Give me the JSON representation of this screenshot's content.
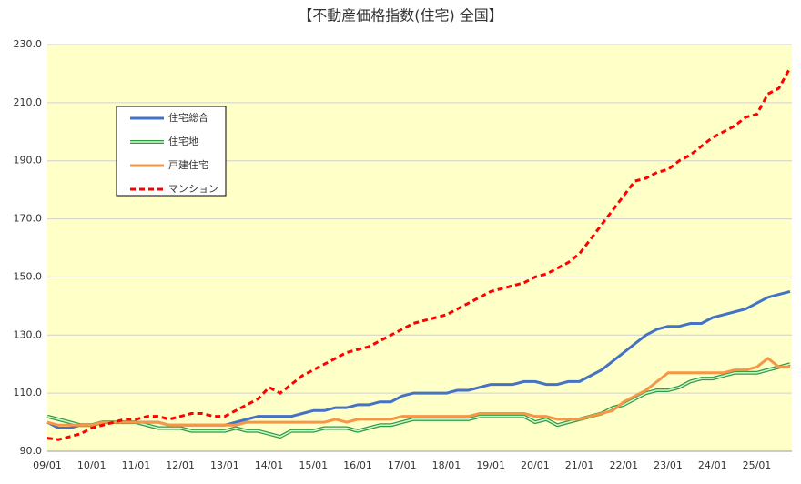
{
  "chart_data": {
    "type": "line",
    "title": "【不動産価格指数(住宅) 全国】",
    "categories": [
      "09/01",
      null,
      null,
      null,
      "10/01",
      null,
      null,
      null,
      "11/01",
      null,
      null,
      null,
      "12/01",
      null,
      null,
      null,
      "13/01",
      null,
      null,
      null,
      "14/01",
      null,
      null,
      null,
      "15/01",
      null,
      null,
      null,
      "16/01",
      null,
      null,
      null,
      "17/01",
      null,
      null,
      null,
      "18/01",
      null,
      null,
      null,
      "19/01",
      null,
      null,
      null,
      "20/01",
      null,
      null,
      null,
      "21/01",
      null,
      null,
      null,
      "22/01",
      null,
      null,
      null,
      "23/01",
      null,
      null,
      null,
      "24/01",
      null,
      null,
      null,
      "25/01",
      null,
      null,
      null
    ],
    "series": [
      {
        "name": "住宅総合",
        "color": "#4472c4",
        "values": [
          100,
          98,
          98,
          99,
          99,
          100,
          100,
          100,
          100,
          100,
          100,
          99,
          99,
          99,
          99,
          99,
          99,
          100,
          101,
          102,
          102,
          102,
          102,
          103,
          104,
          104,
          105,
          105,
          106,
          106,
          107,
          107,
          109,
          110,
          110,
          110,
          110,
          111,
          111,
          112,
          113,
          113,
          113,
          114,
          114,
          113,
          113,
          114,
          114,
          116,
          118,
          121,
          124,
          127,
          130,
          132,
          133,
          133,
          134,
          134,
          136,
          137,
          138,
          139,
          141,
          143,
          144,
          145
        ]
      },
      {
        "name": "住宅地",
        "color": "#70c070",
        "values": [
          102,
          101,
          100,
          99,
          99,
          100,
          100,
          100,
          100,
          99,
          98,
          98,
          98,
          97,
          97,
          97,
          97,
          98,
          97,
          97,
          96,
          95,
          97,
          97,
          97,
          98,
          98,
          98,
          97,
          98,
          99,
          99,
          100,
          101,
          101,
          101,
          101,
          101,
          101,
          102,
          102,
          102,
          102,
          102,
          100,
          101,
          99,
          100,
          101,
          102,
          103,
          105,
          106,
          108,
          110,
          111,
          111,
          112,
          114,
          115,
          115,
          116,
          117,
          117,
          117,
          118,
          119,
          120
        ]
      },
      {
        "name": "戸建住宅",
        "color": "#f79646",
        "values": [
          100,
          99,
          99,
          99,
          99,
          100,
          100,
          100,
          100,
          100,
          100,
          99,
          99,
          99,
          99,
          99,
          99,
          99,
          100,
          100,
          100,
          100,
          100,
          100,
          100,
          100,
          101,
          100,
          101,
          101,
          101,
          101,
          102,
          102,
          102,
          102,
          102,
          102,
          102,
          103,
          103,
          103,
          103,
          103,
          102,
          102,
          101,
          101,
          101,
          102,
          103,
          104,
          107,
          109,
          111,
          114,
          117,
          117,
          117,
          117,
          117,
          117,
          118,
          118,
          119,
          122,
          119,
          119
        ]
      },
      {
        "name": "マンション",
        "color": "#ff0000",
        "values": [
          94.5,
          94,
          95,
          96,
          98,
          99,
          100,
          101,
          101,
          102,
          102,
          101,
          102,
          103,
          103,
          102,
          102,
          104,
          106,
          108,
          112,
          110,
          113,
          116,
          118,
          120,
          122,
          124,
          125,
          126,
          128,
          130,
          132,
          134,
          135,
          136,
          137,
          139,
          141,
          143,
          145,
          146,
          147,
          148,
          150,
          151,
          153,
          155,
          158,
          163,
          168,
          173,
          178,
          183,
          184,
          186,
          187,
          190,
          192,
          195,
          198,
          200,
          202,
          205,
          206,
          213,
          215,
          222
        ]
      }
    ],
    "ylim": [
      90,
      230
    ],
    "yticks": [
      {
        "value": 90,
        "label": "90.0"
      },
      {
        "value": 110,
        "label": "110.0"
      },
      {
        "value": 130,
        "label": "130.0"
      },
      {
        "value": 150,
        "label": "150.0"
      },
      {
        "value": 170,
        "label": "170.0"
      },
      {
        "value": 190,
        "label": "190.0"
      },
      {
        "value": 210,
        "label": "210.0"
      },
      {
        "value": 230,
        "label": "230.0"
      }
    ],
    "grid": true
  }
}
